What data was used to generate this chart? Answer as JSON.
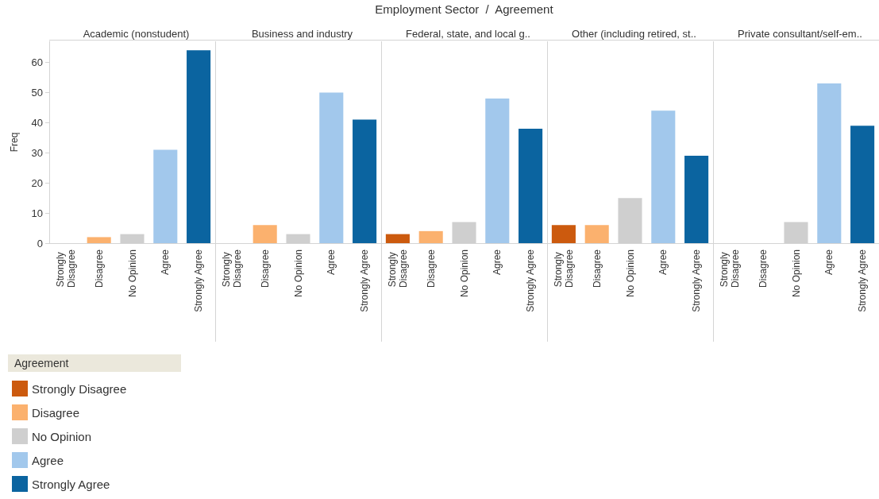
{
  "chart_data": [
    {
      "type": "bar",
      "title": "Academic (nonstudent)",
      "annotations": [
        "Employment Sector  /  Agreement"
      ],
      "ylabel": "Freq",
      "legend": "bottom left",
      "legend_title": "Agreement",
      "categories": [
        "Strongly Disagree",
        "Disagree",
        "No Opinion",
        "Agree",
        "Strongly Agree"
      ],
      "ylim": [
        0,
        67
      ],
      "yticks": [
        0,
        10,
        20,
        30,
        40,
        50,
        60
      ],
      "series": [
        {
          "name": "Strongly Disagree",
          "color": "#cc5a0e",
          "values": [
            null,
            null,
            null,
            null,
            null
          ]
        },
        {
          "name": "Disagree",
          "color": "#fbb16e",
          "values": [
            null,
            2,
            null,
            null,
            null
          ]
        },
        {
          "name": "No Opinion",
          "color": "#cfcfcf",
          "values": [
            null,
            null,
            3,
            null,
            null
          ]
        },
        {
          "name": "Agree",
          "color": "#a2c8ec",
          "values": [
            null,
            null,
            null,
            31,
            null
          ]
        },
        {
          "name": "Strongly Agree",
          "color": "#0b64a0",
          "values": [
            null,
            null,
            null,
            null,
            64
          ]
        }
      ]
    },
    {
      "type": "bar",
      "title": "Business and industry",
      "categories": [
        "Strongly Disagree",
        "Disagree",
        "No Opinion",
        "Agree",
        "Strongly Agree"
      ],
      "ylim": [
        0,
        67
      ],
      "yticks": [
        0,
        10,
        20,
        30,
        40,
        50,
        60
      ],
      "tick_labels": "x",
      "series": [
        {
          "color": "#cc5a0e",
          "values": [
            null,
            null,
            null,
            null,
            null
          ]
        },
        {
          "color": "#fbb16e",
          "values": [
            null,
            6,
            null,
            null,
            null
          ]
        },
        {
          "color": "#cfcfcf",
          "values": [
            null,
            null,
            3,
            null,
            null
          ]
        },
        {
          "color": "#a2c8ec",
          "values": [
            null,
            null,
            null,
            50,
            null
          ]
        },
        {
          "color": "#0b64a0",
          "values": [
            null,
            null,
            null,
            null,
            41
          ]
        }
      ]
    },
    {
      "type": "bar",
      "title": "Federal, state, and local g..",
      "categories": [
        "Strongly Disagree",
        "Disagree",
        "No Opinion",
        "Agree",
        "Strongly Agree"
      ],
      "ylim": [
        0,
        67
      ],
      "yticks": [
        0,
        10,
        20,
        30,
        40,
        50,
        60
      ],
      "tick_labels": "x",
      "series": [
        {
          "color": "#cc5a0e",
          "values": [
            3,
            null,
            null,
            null,
            null
          ]
        },
        {
          "color": "#fbb16e",
          "values": [
            null,
            4,
            null,
            null,
            null
          ]
        },
        {
          "color": "#cfcfcf",
          "values": [
            null,
            null,
            7,
            null,
            null
          ]
        },
        {
          "color": "#a2c8ec",
          "values": [
            null,
            null,
            null,
            48,
            null
          ]
        },
        {
          "color": "#0b64a0",
          "values": [
            null,
            null,
            null,
            null,
            38
          ]
        }
      ]
    },
    {
      "type": "bar",
      "title": "Other (including retired, st..",
      "categories": [
        "Strongly Disagree",
        "Disagree",
        "No Opinion",
        "Agree",
        "Strongly Agree"
      ],
      "ylim": [
        0,
        67
      ],
      "yticks": [
        0,
        10,
        20,
        30,
        40,
        50,
        60
      ],
      "tick_labels": "x",
      "series": [
        {
          "color": "#cc5a0e",
          "values": [
            6,
            null,
            null,
            null,
            null
          ]
        },
        {
          "color": "#fbb16e",
          "values": [
            null,
            6,
            null,
            null,
            null
          ]
        },
        {
          "color": "#cfcfcf",
          "values": [
            null,
            null,
            15,
            null,
            null
          ]
        },
        {
          "color": "#a2c8ec",
          "values": [
            null,
            null,
            null,
            44,
            null
          ]
        },
        {
          "color": "#0b64a0",
          "values": [
            null,
            null,
            null,
            null,
            29
          ]
        }
      ]
    },
    {
      "type": "bar",
      "title": "Private consultant/self-em..",
      "categories": [
        "Strongly Disagree",
        "Disagree",
        "No Opinion",
        "Agree",
        "Strongly Agree"
      ],
      "ylim": [
        0,
        67
      ],
      "yticks": [
        0,
        10,
        20,
        30,
        40,
        50,
        60
      ],
      "tick_labels": "x",
      "series": [
        {
          "color": "#cc5a0e",
          "values": [
            null,
            null,
            null,
            null,
            null
          ]
        },
        {
          "color": "#fbb16e",
          "values": [
            null,
            null,
            null,
            null,
            null
          ]
        },
        {
          "color": "#cfcfcf",
          "values": [
            null,
            null,
            7,
            null,
            null
          ]
        },
        {
          "color": "#a2c8ec",
          "values": [
            null,
            null,
            null,
            53,
            null
          ]
        },
        {
          "color": "#0b64a0",
          "values": [
            null,
            null,
            null,
            null,
            39
          ]
        }
      ]
    }
  ]
}
